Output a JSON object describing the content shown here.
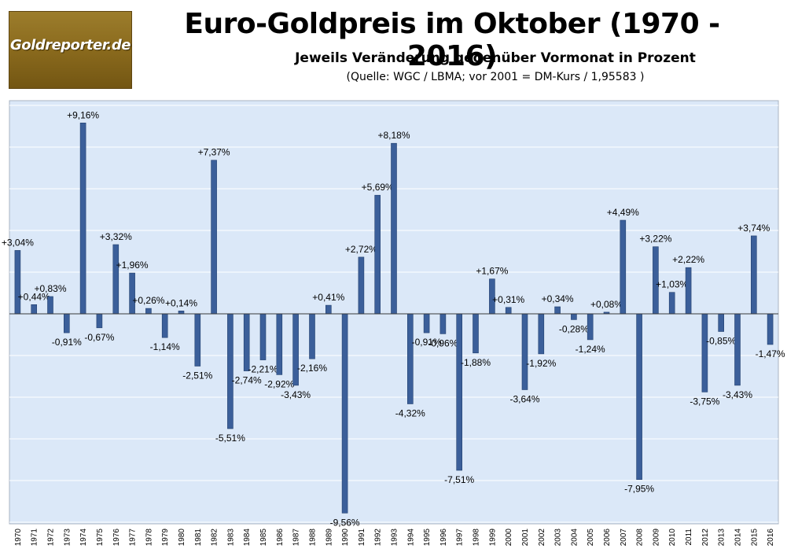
{
  "header": {
    "logo_text": "Goldreporter.de",
    "title": "Euro-Goldpreis im Oktober (1970 - 2016)",
    "subtitle": "Jeweils Veränderung gegenüber Vormonat in Prozent",
    "source": "(Quelle: WGC / LBMA; vor 2001 = DM-Kurs / 1,95583 )"
  },
  "colors": {
    "plot_background": "#dbe8f8",
    "bar_fill": "#3b5f9a",
    "bar_stroke": "#22406e",
    "gridline": "#ffffff",
    "logo_gold": "#8a6a1d"
  },
  "chart_data": {
    "type": "bar",
    "title": "Euro-Goldpreis im Oktober (1970 - 2016)",
    "subtitle": "Jeweils Veränderung gegenüber Vormonat in Prozent",
    "xlabel": "",
    "ylabel": "",
    "ylim": [
      -10,
      10
    ],
    "grid": true,
    "legend": "none",
    "categories": [
      "1970",
      "1971",
      "1972",
      "1973",
      "1974",
      "1975",
      "1976",
      "1977",
      "1978",
      "1979",
      "1980",
      "1981",
      "1982",
      "1983",
      "1984",
      "1985",
      "1986",
      "1987",
      "1988",
      "1989",
      "1990",
      "1991",
      "1992",
      "1993",
      "1994",
      "1995",
      "1996",
      "1997",
      "1998",
      "1999",
      "2000",
      "2001",
      "2002",
      "2003",
      "2004",
      "2005",
      "2006",
      "2007",
      "2008",
      "2009",
      "2010",
      "2011",
      "2012",
      "2013",
      "2014",
      "2015",
      "2016"
    ],
    "values": [
      3.04,
      0.44,
      0.83,
      -0.91,
      9.16,
      -0.67,
      3.32,
      1.96,
      0.26,
      -1.14,
      0.14,
      -2.51,
      7.37,
      -5.51,
      -2.74,
      -2.21,
      -2.92,
      -3.43,
      -2.16,
      0.41,
      -9.56,
      2.72,
      5.69,
      8.18,
      -4.32,
      -0.91,
      -0.96,
      -7.51,
      -1.88,
      1.67,
      0.31,
      -3.64,
      -1.92,
      0.34,
      -0.28,
      -1.24,
      0.08,
      4.49,
      -7.95,
      3.22,
      1.03,
      2.22,
      -3.75,
      -0.85,
      -3.43,
      3.74,
      -1.47
    ],
    "data_labels": [
      "+3,04%",
      "+0,44%",
      "+0,83%",
      "-0,91%",
      "+9,16%",
      "-0,67%",
      "+3,32%",
      "+1,96%",
      "+0,26%",
      "-1,14%",
      "+0,14%",
      "-2,51%",
      "+7,37%",
      "-5,51%",
      "-2,74%",
      "-2,21%",
      "-2,92%",
      "-3,43%",
      "-2,16%",
      "+0,41%",
      "-9,56%",
      "+2,72%",
      "+5,69%",
      "+8,18%",
      "-4,32%",
      "-0,91%",
      "-0,96%",
      "-7,51%",
      "-1,88%",
      "+1,67%",
      "+0,31%",
      "-3,64%",
      "-1,92%",
      "+0,34%",
      "-0,28%",
      "-1,24%",
      "+0,08%",
      "+4,49%",
      "-7,95%",
      "+3,22%",
      "+1,03%",
      "+2,22%",
      "-3,75%",
      "-0,85%",
      "-3,43%",
      "+3,74%",
      "-1,47%"
    ]
  }
}
